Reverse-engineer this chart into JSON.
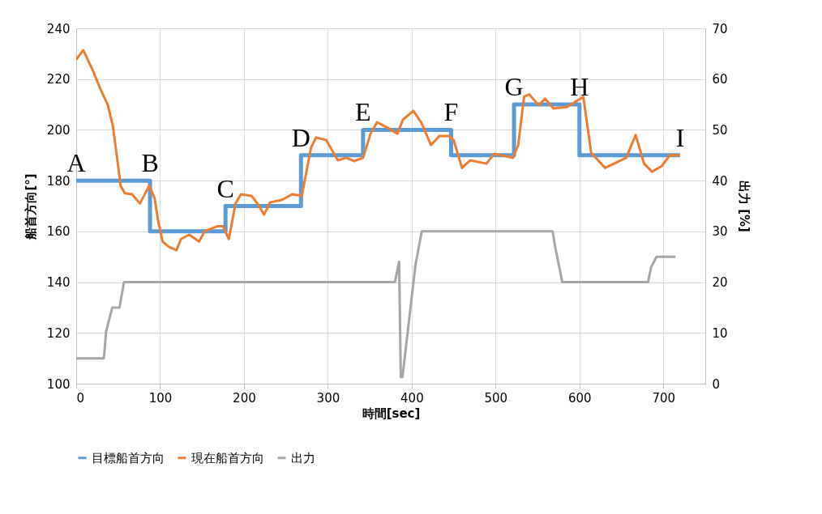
{
  "chart_data": {
    "type": "line",
    "xlabel": "時間[sec]",
    "ylabel": "船首方向[°]",
    "y2label": "出力 [%]",
    "xlim": [
      0,
      750
    ],
    "xticks": [
      0,
      100,
      200,
      300,
      400,
      500,
      600,
      700
    ],
    "ylim": [
      100,
      240
    ],
    "yticks": [
      100,
      120,
      140,
      160,
      180,
      200,
      220,
      240
    ],
    "y2lim": [
      0,
      70
    ],
    "y2ticks": [
      0,
      10,
      20,
      30,
      40,
      50,
      60,
      70
    ],
    "grid": true,
    "legend": "bottom",
    "marker": "none",
    "line_style": "solid",
    "series": [
      {
        "name": "目標船首方向",
        "type": "step",
        "color": "#5b9bd5",
        "x": [
          0,
          88,
          178,
          268,
          342,
          447,
          522,
          600,
          720
        ],
        "values": [
          180,
          160,
          170,
          190,
          200,
          190,
          210,
          190,
          190
        ]
      },
      {
        "name": "現在船首方向",
        "type": "line",
        "color": "#ed7d31",
        "x": [
          0,
          8.4,
          19,
          29,
          37.5,
          43.6,
          48,
          53,
          58,
          66.6,
          76,
          87,
          93.5,
          98,
          103,
          110,
          119.5,
          125,
          135,
          146.5,
          153,
          168,
          175,
          182,
          190,
          196.5,
          209,
          216,
          224,
          231,
          245,
          257.5,
          269,
          280,
          286,
          298,
          312,
          322,
          331.5,
          342,
          351,
          358.7,
          373,
          383,
          389.5,
          402,
          411.7,
          423,
          433,
          444,
          450,
          460,
          469.6,
          489,
          498.5,
          520.7,
          527,
          534,
          540,
          551.5,
          559,
          569,
          585,
          604.6,
          614,
          630.6,
          655.7,
          667,
          677,
          686.5,
          698,
          707.7,
          720
        ],
        "values": [
          227.7,
          231.4,
          224,
          216,
          210,
          201.7,
          191,
          178,
          175,
          174.6,
          171,
          178,
          173,
          163.5,
          156,
          154,
          152.6,
          157,
          158.7,
          156,
          160,
          162,
          162,
          157,
          171,
          174.6,
          174,
          171,
          166.6,
          171.4,
          172.4,
          174.6,
          174,
          193,
          197,
          196,
          188,
          189,
          187.7,
          189,
          198.5,
          203,
          200.5,
          198.5,
          204,
          207.5,
          202.7,
          194,
          197.6,
          197.6,
          196,
          185,
          188,
          186.7,
          190.6,
          189,
          194,
          213,
          214,
          209.7,
          212.3,
          208.4,
          209,
          213,
          191,
          185,
          189,
          198,
          186.7,
          183.5,
          185.7,
          190,
          190
        ]
      },
      {
        "name": "出力",
        "type": "line",
        "axis": "y2",
        "color": "#a5a5a5",
        "x": [
          0,
          33,
          35.7,
          43,
          51.6,
          57,
          380,
          385,
          387,
          389,
          404.5,
          412,
          568,
          571,
          579.5,
          681.7,
          685.5,
          692,
          714.5
        ],
        "values": [
          5,
          5,
          10.3,
          15,
          15,
          20,
          20,
          24,
          1.3,
          1.3,
          23.4,
          30,
          30,
          27,
          20,
          20,
          23,
          25,
          25
        ]
      }
    ],
    "annotations": [
      {
        "text": "A",
        "x": 0,
        "y": 180
      },
      {
        "text": "B",
        "x": 88,
        "y": 180
      },
      {
        "text": "C",
        "x": 178,
        "y": 170
      },
      {
        "text": "D",
        "x": 268,
        "y": 190
      },
      {
        "text": "E",
        "x": 342,
        "y": 200
      },
      {
        "text": "F",
        "x": 447,
        "y": 200
      },
      {
        "text": "G",
        "x": 522,
        "y": 210
      },
      {
        "text": "H",
        "x": 600,
        "y": 210
      },
      {
        "text": "I",
        "x": 720,
        "y": 190
      }
    ]
  }
}
